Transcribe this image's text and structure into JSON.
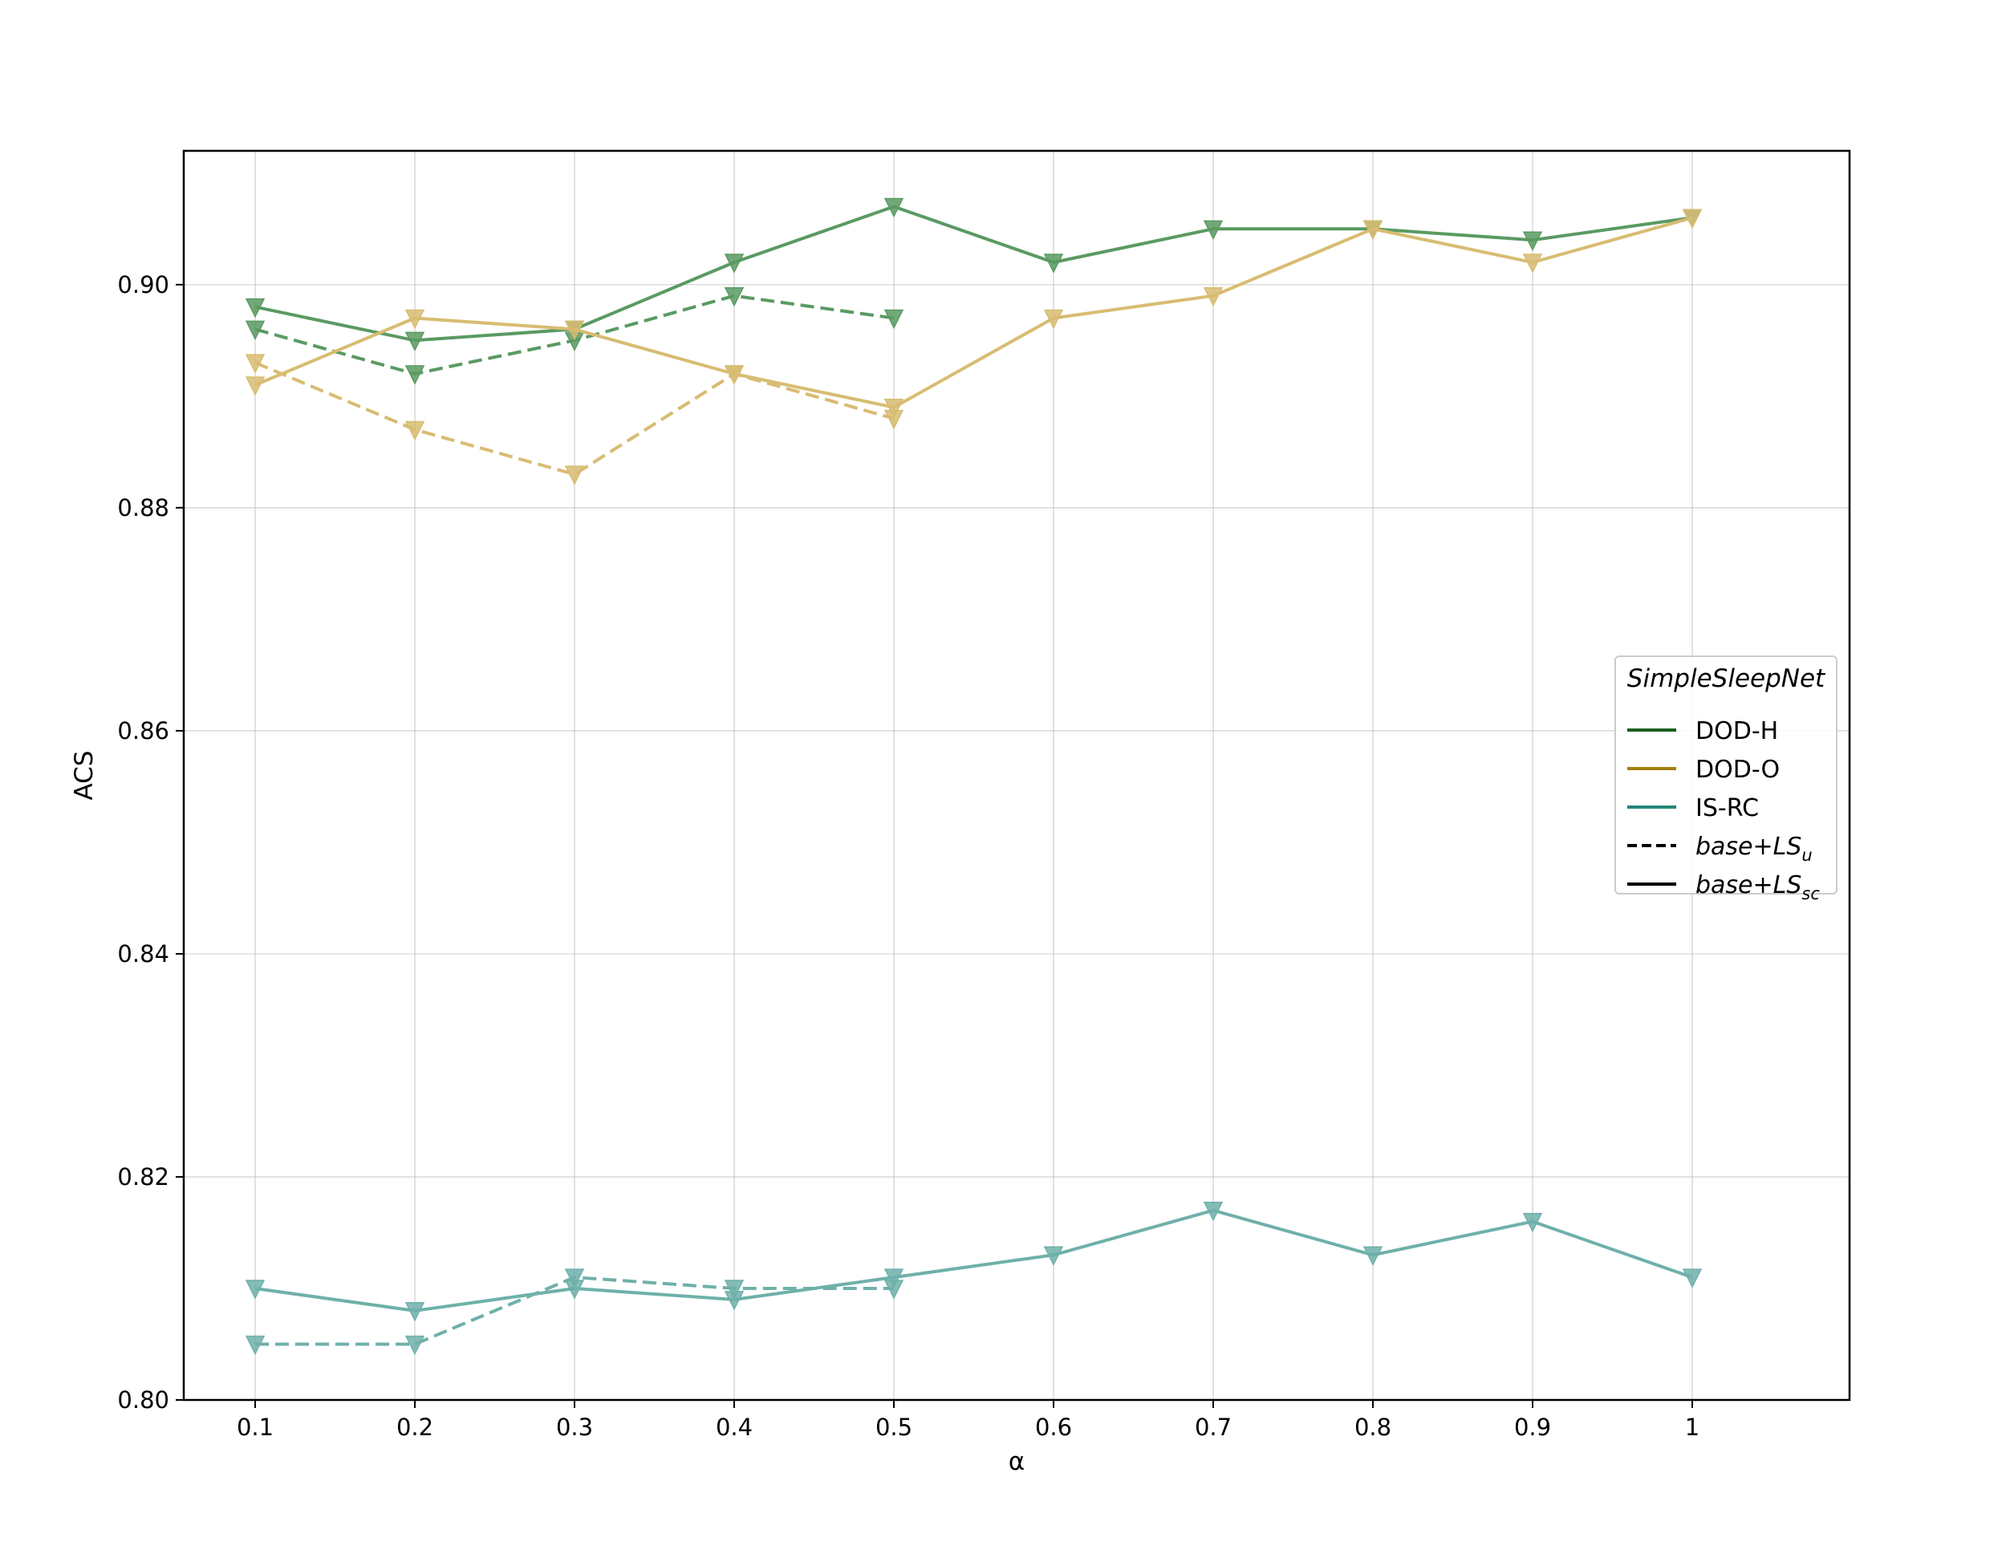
{
  "chart_data": {
    "type": "line",
    "xlabel": "α",
    "ylabel": "ACS",
    "x": [
      0.1,
      0.2,
      0.3,
      0.4,
      0.5,
      0.6,
      0.7,
      0.8,
      0.9,
      1.0
    ],
    "x_tick_labels": [
      "0.1",
      "0.2",
      "0.3",
      "0.4",
      "0.5",
      "0.6",
      "0.7",
      "0.8",
      "0.9",
      "1"
    ],
    "ylim": [
      0.8,
      0.912
    ],
    "y_ticks": [
      0.8,
      0.82,
      0.84,
      0.86,
      0.88,
      0.9
    ],
    "y_tick_labels": [
      "0.80",
      "0.82",
      "0.84",
      "0.86",
      "0.88",
      "0.90"
    ],
    "grid": true,
    "legend": {
      "title": "SimpleSleepNet",
      "placement": "center-right",
      "entries": [
        {
          "label": "DOD-H",
          "color": "#1b5e20",
          "style": "solid"
        },
        {
          "label": "DOD-O",
          "color": "#a08010",
          "style": "solid"
        },
        {
          "label": "IS-RC",
          "color": "#26867a",
          "style": "solid"
        },
        {
          "label_main": "base+LS",
          "label_sub": "u",
          "color": "#000000",
          "style": "dashed"
        },
        {
          "label_main": "base+LS",
          "label_sub": "sc",
          "color": "#000000",
          "style": "solid"
        }
      ]
    },
    "series": [
      {
        "dataset": "DOD-H",
        "variant": "base+LS_sc",
        "style": "solid",
        "color": "#5a9a62",
        "values": [
          0.898,
          0.895,
          0.896,
          0.902,
          0.907,
          0.902,
          0.905,
          0.905,
          0.904,
          0.906
        ]
      },
      {
        "dataset": "DOD-H",
        "variant": "base+LS_u",
        "style": "dashed",
        "color": "#5a9a62",
        "values": [
          0.896,
          0.892,
          0.895,
          0.899,
          0.897,
          null,
          null,
          null,
          null,
          null
        ]
      },
      {
        "dataset": "DOD-O",
        "variant": "base+LS_sc",
        "style": "solid",
        "color": "#d8bc72",
        "values": [
          0.891,
          0.897,
          0.896,
          0.892,
          0.889,
          0.897,
          0.899,
          0.905,
          0.902,
          0.906
        ]
      },
      {
        "dataset": "DOD-O",
        "variant": "base+LS_u",
        "style": "dashed",
        "color": "#d8bc72",
        "values": [
          0.893,
          0.887,
          0.883,
          0.892,
          0.888,
          null,
          null,
          null,
          null,
          null
        ]
      },
      {
        "dataset": "IS-RC",
        "variant": "base+LS_sc",
        "style": "solid",
        "color": "#6fb0aa",
        "values": [
          0.81,
          0.808,
          0.81,
          0.809,
          0.811,
          0.813,
          0.817,
          0.813,
          0.816,
          0.811
        ]
      },
      {
        "dataset": "IS-RC",
        "variant": "base+LS_u",
        "style": "dashed",
        "color": "#6fb0aa",
        "values": [
          0.805,
          0.805,
          0.811,
          0.81,
          0.81,
          null,
          null,
          null,
          null,
          null
        ]
      }
    ]
  }
}
